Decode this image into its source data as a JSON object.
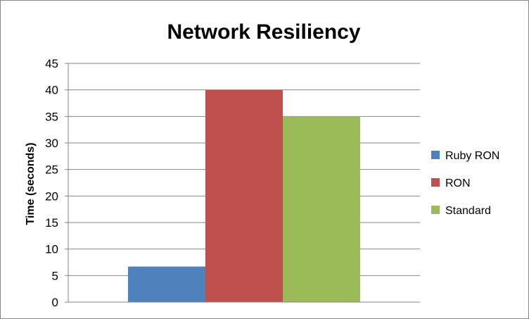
{
  "chart_data": {
    "type": "bar",
    "title": "Network Resiliency",
    "xlabel": "",
    "ylabel": "Time (seconds)",
    "ylim": [
      0,
      45
    ],
    "yticks": [
      0,
      5,
      10,
      15,
      20,
      25,
      30,
      35,
      40,
      45
    ],
    "categories": [
      ""
    ],
    "series": [
      {
        "name": "Ruby RON",
        "values": [
          6.7
        ],
        "color": "#4F81BD"
      },
      {
        "name": "RON",
        "values": [
          40
        ],
        "color": "#C0504D"
      },
      {
        "name": "Standard",
        "values": [
          35
        ],
        "color": "#9BBB59"
      }
    ],
    "grid": true,
    "legend": "right"
  }
}
